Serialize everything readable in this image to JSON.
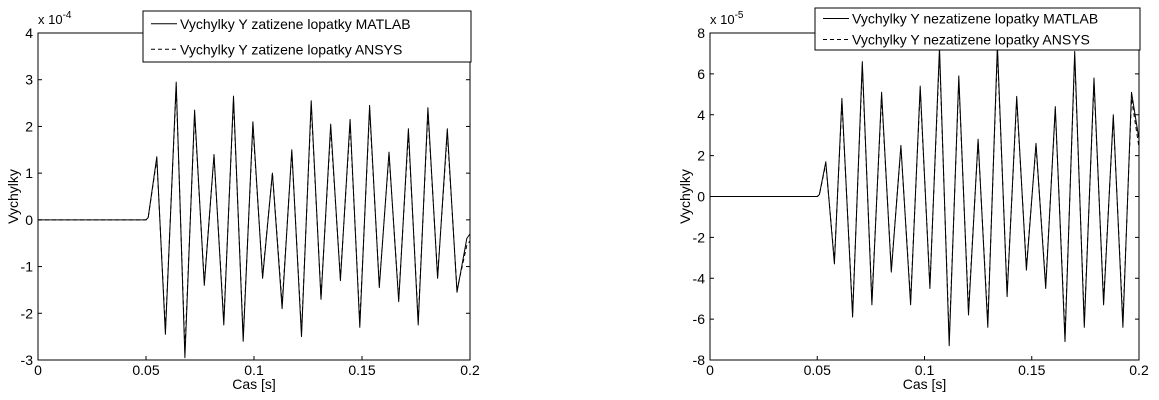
{
  "chart_data": [
    {
      "type": "line",
      "xlabel": "Cas [s]",
      "ylabel": "Vychylky",
      "xlim": [
        0,
        0.2
      ],
      "ylim": [
        -3,
        4
      ],
      "xticks": [
        "0",
        "0.05",
        "0.1",
        "0.15",
        "0.2"
      ],
      "yticks": [
        "-3",
        "-2",
        "-1",
        "0",
        "1",
        "2",
        "3",
        "4"
      ],
      "y_multiplier_base": "x 10",
      "y_multiplier_exp": "-4",
      "legend_position": "top-right",
      "grid": false,
      "series": [
        {
          "name": "Vychylky Y zatizene lopatky MATLAB",
          "style": "solid",
          "x": [
            0,
            0.05,
            0.051,
            0.055,
            0.059,
            0.064,
            0.068,
            0.0725,
            0.077,
            0.0815,
            0.086,
            0.0905,
            0.095,
            0.0995,
            0.104,
            0.1085,
            0.113,
            0.1175,
            0.122,
            0.1265,
            0.131,
            0.1355,
            0.14,
            0.1445,
            0.149,
            0.1535,
            0.158,
            0.1625,
            0.167,
            0.1715,
            0.176,
            0.1805,
            0.185,
            0.1895,
            0.194,
            0.1985,
            0.2
          ],
          "y": [
            0,
            0,
            0.05,
            1.35,
            -2.45,
            2.95,
            -2.95,
            2.35,
            -1.4,
            1.4,
            -2.25,
            2.65,
            -2.6,
            2.1,
            -1.25,
            1.0,
            -1.9,
            1.5,
            -2.5,
            2.55,
            -1.7,
            2.05,
            -1.3,
            2.15,
            -2.3,
            2.45,
            -1.45,
            1.45,
            -1.75,
            1.95,
            -2.25,
            2.4,
            -1.25,
            1.95,
            -1.55,
            -0.4,
            -0.3
          ]
        },
        {
          "name": "Vychylky Y zatizene lopatky ANSYS",
          "style": "dashed",
          "x": [
            0,
            0.05,
            0.051,
            0.055,
            0.059,
            0.064,
            0.068,
            0.0725,
            0.077,
            0.0815,
            0.086,
            0.0905,
            0.095,
            0.0995,
            0.104,
            0.1085,
            0.113,
            0.1175,
            0.122,
            0.1265,
            0.131,
            0.1355,
            0.14,
            0.1445,
            0.149,
            0.1535,
            0.158,
            0.1625,
            0.167,
            0.1715,
            0.176,
            0.1805,
            0.185,
            0.1895,
            0.194,
            0.1985,
            0.2
          ],
          "y": [
            0,
            0,
            0.05,
            1.3,
            -2.35,
            2.85,
            -2.8,
            2.25,
            -1.35,
            1.35,
            -2.15,
            2.55,
            -2.5,
            2.0,
            -1.2,
            1.0,
            -1.8,
            1.45,
            -2.4,
            2.45,
            -1.65,
            1.95,
            -1.25,
            2.05,
            -2.2,
            2.35,
            -1.4,
            1.4,
            -1.7,
            1.85,
            -2.15,
            2.3,
            -1.2,
            1.85,
            -1.5,
            -0.55,
            -0.45
          ]
        }
      ]
    },
    {
      "type": "line",
      "xlabel": "Cas [s]",
      "ylabel": "Vychylky",
      "xlim": [
        0,
        0.2
      ],
      "ylim": [
        -8,
        8
      ],
      "xticks": [
        "0",
        "0.05",
        "0.1",
        "0.15",
        "0.2"
      ],
      "yticks": [
        "-8",
        "-6",
        "-4",
        "-2",
        "0",
        "2",
        "4",
        "6",
        "8"
      ],
      "y_multiplier_base": "x 10",
      "y_multiplier_exp": "-5",
      "legend_position": "top-right",
      "grid": false,
      "series": [
        {
          "name": "Vychylky Y nezatizene lopatky MATLAB",
          "style": "solid",
          "x": [
            0,
            0.05,
            0.051,
            0.054,
            0.058,
            0.0615,
            0.0665,
            0.071,
            0.0755,
            0.08,
            0.0845,
            0.089,
            0.0935,
            0.098,
            0.1025,
            0.107,
            0.1115,
            0.116,
            0.1205,
            0.125,
            0.1295,
            0.134,
            0.1385,
            0.143,
            0.1475,
            0.152,
            0.1565,
            0.161,
            0.1655,
            0.17,
            0.1745,
            0.179,
            0.1835,
            0.188,
            0.1925,
            0.1965,
            0.2
          ],
          "y": [
            0,
            0,
            0.1,
            1.7,
            -3.3,
            4.8,
            -5.9,
            6.6,
            -5.3,
            5.1,
            -3.7,
            2.5,
            -5.3,
            5.4,
            -4.5,
            7.3,
            -7.3,
            5.9,
            -5.8,
            2.8,
            -6.4,
            7.4,
            -4.9,
            4.9,
            -3.6,
            2.6,
            -4.5,
            4.4,
            -7.1,
            7.1,
            -6.4,
            5.8,
            -5.3,
            4.0,
            -6.4,
            5.1,
            2.8
          ]
        },
        {
          "name": "Vychylky Y nezatizene lopatky ANSYS",
          "style": "dashed",
          "x": [
            0,
            0.05,
            0.051,
            0.054,
            0.058,
            0.0615,
            0.0665,
            0.071,
            0.0755,
            0.08,
            0.0845,
            0.089,
            0.0935,
            0.098,
            0.1025,
            0.107,
            0.1115,
            0.116,
            0.1205,
            0.125,
            0.1295,
            0.134,
            0.1385,
            0.143,
            0.1475,
            0.152,
            0.1565,
            0.161,
            0.1655,
            0.17,
            0.1745,
            0.179,
            0.1835,
            0.188,
            0.1925,
            0.1965,
            0.2
          ],
          "y": [
            0,
            0,
            0.1,
            1.6,
            -3.15,
            4.6,
            -5.7,
            6.35,
            -5.1,
            4.9,
            -3.55,
            2.4,
            -5.1,
            5.2,
            -4.35,
            7.0,
            -7.0,
            5.65,
            -5.55,
            2.7,
            -6.15,
            7.1,
            -4.7,
            4.7,
            -3.45,
            2.5,
            -4.3,
            4.25,
            -6.8,
            6.8,
            -6.15,
            5.55,
            -5.1,
            3.85,
            -6.1,
            4.8,
            2.4
          ]
        }
      ]
    }
  ]
}
